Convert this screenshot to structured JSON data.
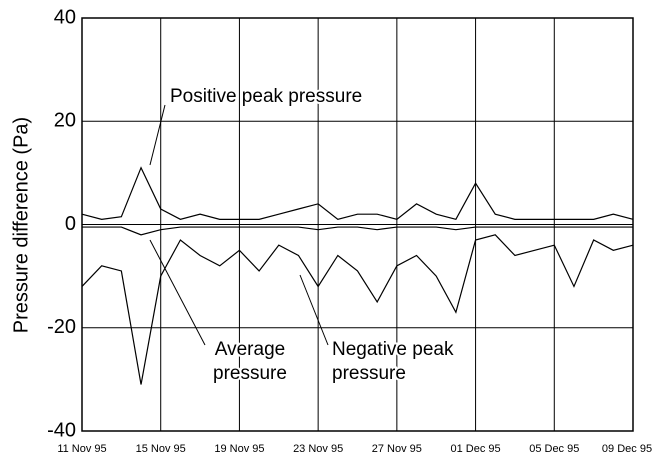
{
  "chart_data": {
    "type": "line",
    "y_label": "Pressure difference (Pa)",
    "x": [
      "1995-11-11",
      "1995-11-12",
      "1995-11-13",
      "1995-11-14",
      "1995-11-15",
      "1995-11-16",
      "1995-11-17",
      "1995-11-18",
      "1995-11-19",
      "1995-11-20",
      "1995-11-21",
      "1995-11-22",
      "1995-11-23",
      "1995-11-24",
      "1995-11-25",
      "1995-11-26",
      "1995-11-27",
      "1995-11-28",
      "1995-11-29",
      "1995-11-30",
      "1995-12-01",
      "1995-12-02",
      "1995-12-03",
      "1995-12-04",
      "1995-12-05",
      "1995-12-06",
      "1995-12-07",
      "1995-12-08",
      "1995-12-09"
    ],
    "series": [
      {
        "name": "Positive peak pressure",
        "color": "#000000",
        "values": [
          2,
          1,
          1.5,
          11,
          3,
          1,
          2,
          1,
          1,
          1,
          2,
          3,
          4,
          1,
          2,
          2,
          1,
          4,
          2,
          1,
          8,
          2,
          1,
          1,
          1,
          1,
          1,
          2,
          1
        ]
      },
      {
        "name": "Average pressure",
        "color": "#000000",
        "values": [
          -0.5,
          -0.5,
          -0.5,
          -2,
          -1,
          -0.5,
          -0.5,
          -0.5,
          -0.5,
          -0.5,
          -0.5,
          -0.5,
          -1,
          -0.5,
          -0.5,
          -1,
          -0.5,
          -0.5,
          -0.5,
          -1,
          -0.5,
          -0.5,
          -0.5,
          -0.5,
          -0.5,
          -0.5,
          -0.5,
          -0.5,
          -0.5
        ]
      },
      {
        "name": "Negative peak pressure",
        "color": "#000000",
        "values": [
          -12,
          -8,
          -9,
          -31,
          -10,
          -3,
          -6,
          -8,
          -5,
          -9,
          -4,
          -6,
          -12,
          -6,
          -9,
          -15,
          -8,
          -6,
          -10,
          -17,
          -3,
          -2,
          -6,
          -5,
          -4,
          -12,
          -3,
          -5,
          -4
        ]
      }
    ],
    "annotations": [
      {
        "series": 0,
        "lines": [
          "Positive peak pressure"
        ]
      },
      {
        "series": 1,
        "lines": [
          "Average",
          "pressure"
        ]
      },
      {
        "series": 2,
        "lines": [
          "Negative peak",
          "pressure"
        ]
      }
    ],
    "xlim": [
      "1995-11-11",
      "1995-12-09"
    ],
    "xticks": [
      {
        "value": "1995-11-11",
        "label": "11 Nov 95"
      },
      {
        "value": "1995-11-15",
        "label": "15 Nov 95"
      },
      {
        "value": "1995-11-19",
        "label": "19 Nov 95"
      },
      {
        "value": "1995-11-23",
        "label": "23 Nov 95"
      },
      {
        "value": "1995-11-27",
        "label": "27 Nov 95"
      },
      {
        "value": "1995-12-01",
        "label": "01 Dec 95"
      },
      {
        "value": "1995-12-05",
        "label": "05 Dec 95"
      },
      {
        "value": "1995-12-09",
        "label": "09 Dec 95"
      }
    ],
    "ylim": [
      -40,
      40
    ],
    "yticks": [
      -40,
      -20,
      0,
      20,
      40
    ],
    "grid": true
  }
}
